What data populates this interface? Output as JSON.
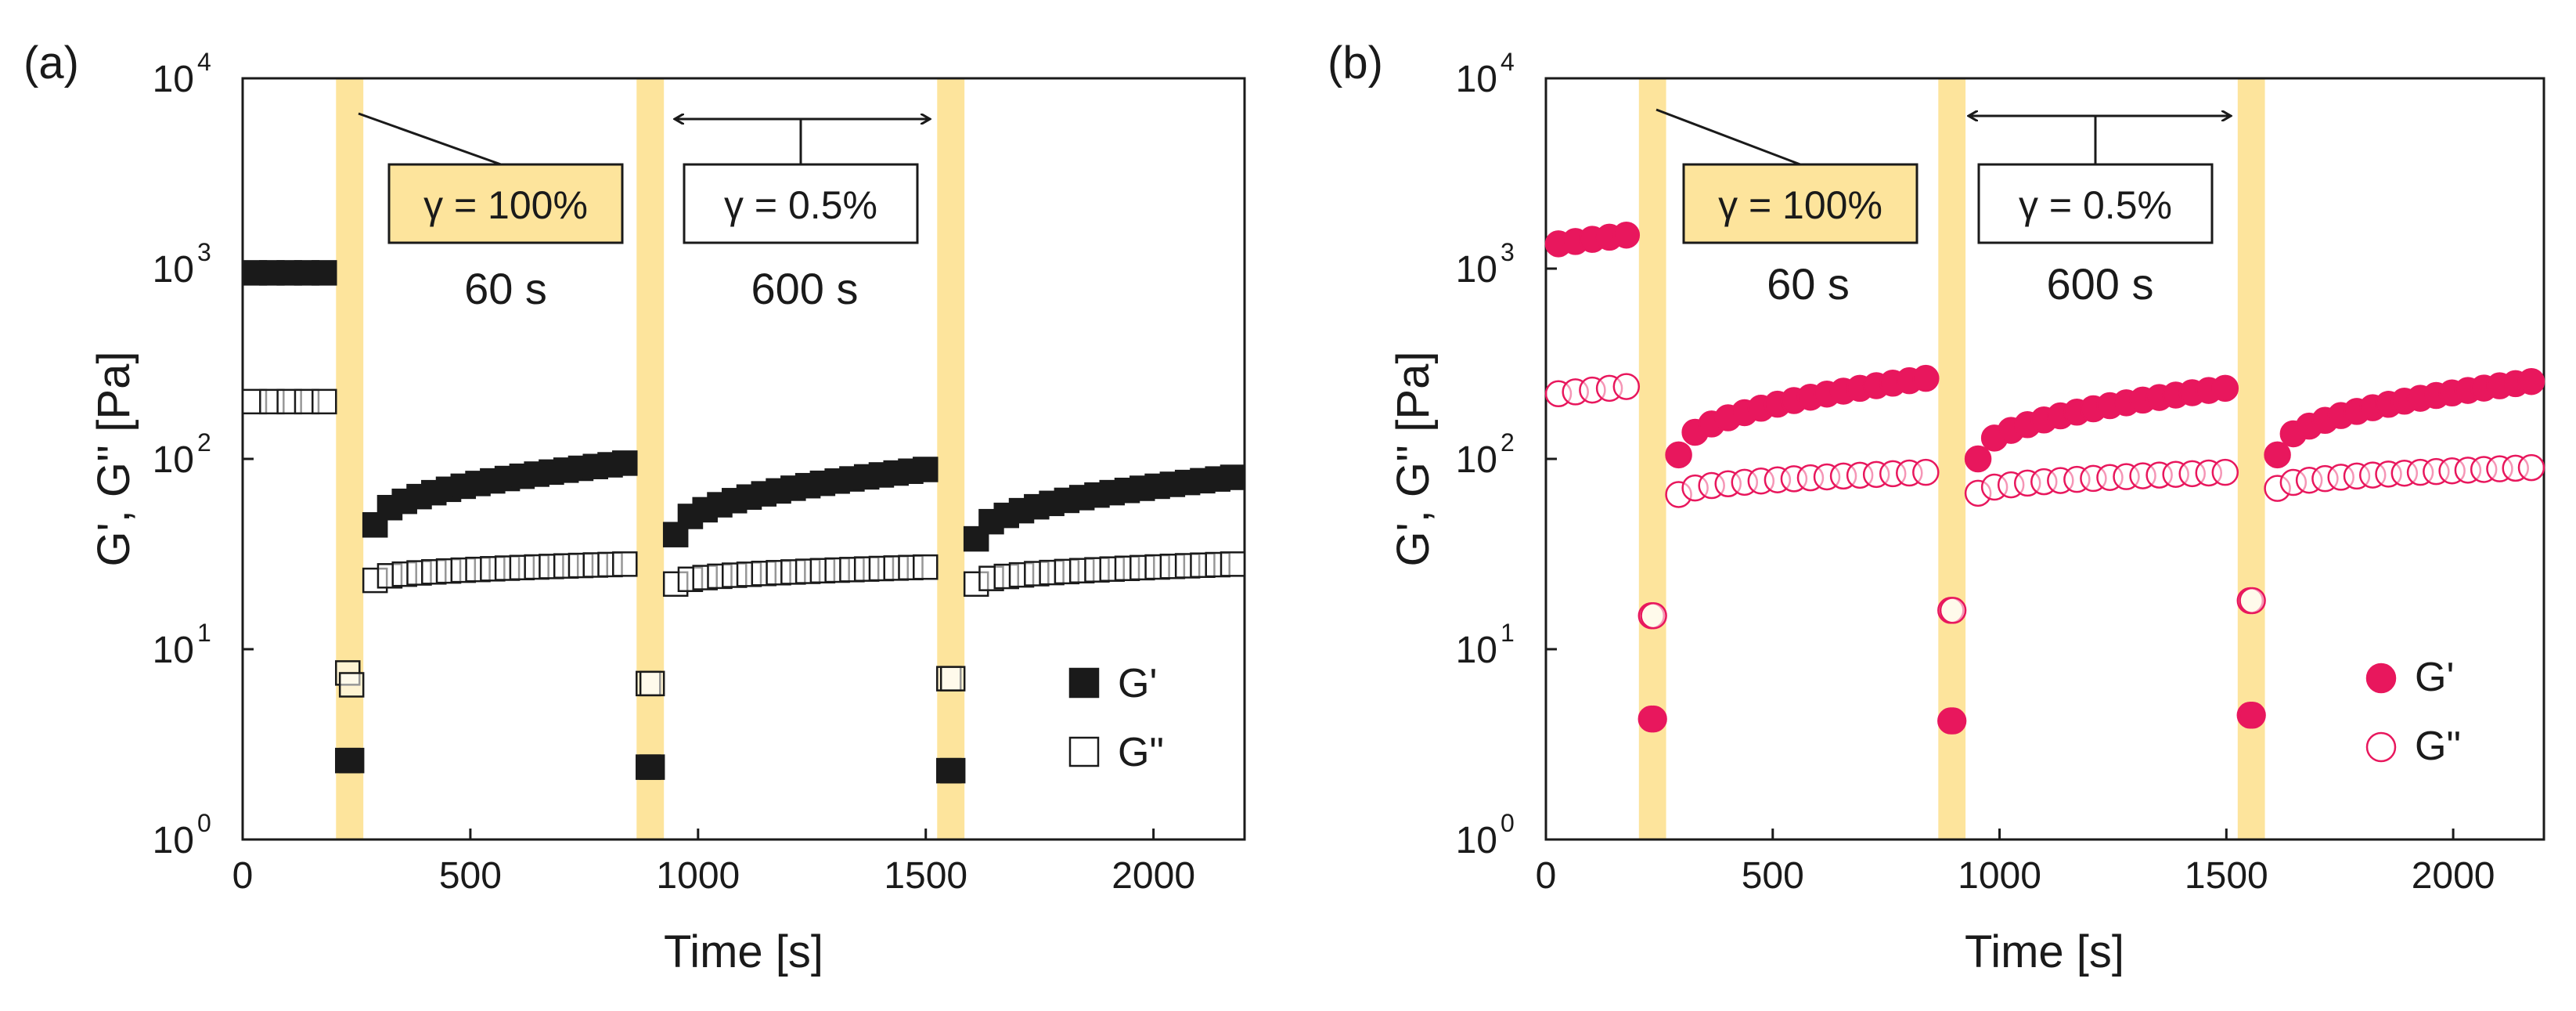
{
  "chart_data": [
    {
      "type": "scatter",
      "panel_label": "(a)",
      "xlabel": "Time [s]",
      "ylabel": "G', G'' [Pa]",
      "xlim": [
        0,
        2200
      ],
      "ylim": [
        1,
        10000
      ],
      "yscale": "log",
      "xticks": [
        "0",
        "500",
        "1000",
        "1500",
        "2000"
      ],
      "yticks": [
        {
          "base": "10",
          "exp": "0"
        },
        {
          "base": "10",
          "exp": "1"
        },
        {
          "base": "10",
          "exp": "2"
        },
        {
          "base": "10",
          "exp": "3"
        },
        {
          "base": "10",
          "exp": "4"
        }
      ],
      "highlight_color": "#fde49c",
      "highlight_intervals": [
        [
          205,
          265
        ],
        [
          865,
          925
        ],
        [
          1525,
          1585
        ]
      ],
      "annotations": {
        "high_strain": "γ = 100%",
        "high_duration": "60 s",
        "low_strain": "γ = 0.5%",
        "low_duration": "600 s"
      },
      "legend": {
        "position": "lower-right"
      },
      "marker": "square",
      "series": [
        {
          "name": "G'",
          "legend_label": "G'",
          "filled": true,
          "color": "#1a1a1a",
          "segments": [
            {
              "t0": 0,
              "t1": 205,
              "type": "const",
              "a": 950
            },
            {
              "t0": 205,
              "t1": 265,
              "type": "const",
              "a": 2.6
            },
            {
              "t0": 265,
              "t1": 865,
              "type": "recovery",
              "a": 45,
              "b": 95
            },
            {
              "t0": 865,
              "t1": 925,
              "type": "const",
              "a": 2.4
            },
            {
              "t0": 925,
              "t1": 1525,
              "type": "recovery",
              "a": 40,
              "b": 88
            },
            {
              "t0": 1525,
              "t1": 1585,
              "type": "const",
              "a": 2.3
            },
            {
              "t0": 1585,
              "t1": 2200,
              "type": "recovery",
              "a": 38,
              "b": 80
            }
          ]
        },
        {
          "name": "G''",
          "legend_label": "G\"",
          "filled": false,
          "color": "#1a1a1a",
          "segments": [
            {
              "t0": 0,
              "t1": 205,
              "type": "const",
              "a": 200
            },
            {
              "t0": 205,
              "t1": 265,
              "type": "decay",
              "a": 7.5,
              "b": 6.5
            },
            {
              "t0": 265,
              "t1": 865,
              "type": "recovery",
              "a": 23,
              "b": 28
            },
            {
              "t0": 865,
              "t1": 925,
              "type": "const",
              "a": 6.6
            },
            {
              "t0": 925,
              "t1": 1525,
              "type": "recovery",
              "a": 22,
              "b": 27
            },
            {
              "t0": 1525,
              "t1": 1585,
              "type": "const",
              "a": 7.0
            },
            {
              "t0": 1585,
              "t1": 2200,
              "type": "recovery",
              "a": 22,
              "b": 28
            }
          ]
        }
      ]
    },
    {
      "type": "scatter",
      "panel_label": "(b)",
      "xlabel": "Time [s]",
      "ylabel": "G', G'' [Pa]",
      "xlim": [
        0,
        2200
      ],
      "ylim": [
        1,
        10000
      ],
      "yscale": "log",
      "xticks": [
        "0",
        "500",
        "1000",
        "1500",
        "2000"
      ],
      "yticks": [
        {
          "base": "10",
          "exp": "0"
        },
        {
          "base": "10",
          "exp": "1"
        },
        {
          "base": "10",
          "exp": "2"
        },
        {
          "base": "10",
          "exp": "3"
        },
        {
          "base": "10",
          "exp": "4"
        }
      ],
      "highlight_color": "#fde49c",
      "highlight_intervals": [
        [
          205,
          265
        ],
        [
          865,
          925
        ],
        [
          1525,
          1585
        ]
      ],
      "annotations": {
        "high_strain": "γ = 100%",
        "high_duration": "60 s",
        "low_strain": "γ = 0.5%",
        "low_duration": "600 s"
      },
      "legend": {
        "position": "lower-right"
      },
      "marker": "circle",
      "series": [
        {
          "name": "G'",
          "legend_label": "G'",
          "filled": true,
          "color": "#e8175d",
          "segments": [
            {
              "t0": 0,
              "t1": 205,
              "type": "linear",
              "a": 1350,
              "b": 1500
            },
            {
              "t0": 205,
              "t1": 265,
              "type": "const",
              "a": 4.3
            },
            {
              "t0": 265,
              "t1": 865,
              "type": "recovery",
              "a": 105,
              "b": 265
            },
            {
              "t0": 865,
              "t1": 925,
              "type": "const",
              "a": 4.2
            },
            {
              "t0": 925,
              "t1": 1525,
              "type": "recovery",
              "a": 100,
              "b": 235
            },
            {
              "t0": 1525,
              "t1": 1585,
              "type": "const",
              "a": 4.5
            },
            {
              "t0": 1585,
              "t1": 2200,
              "type": "recovery",
              "a": 105,
              "b": 255
            }
          ]
        },
        {
          "name": "G''",
          "legend_label": "G\"",
          "filled": false,
          "color": "#e8175d",
          "segments": [
            {
              "t0": 0,
              "t1": 205,
              "type": "linear",
              "a": 220,
              "b": 240
            },
            {
              "t0": 205,
              "t1": 265,
              "type": "const",
              "a": 15
            },
            {
              "t0": 265,
              "t1": 865,
              "type": "recovery",
              "a": 65,
              "b": 85
            },
            {
              "t0": 865,
              "t1": 925,
              "type": "const",
              "a": 16
            },
            {
              "t0": 925,
              "t1": 1525,
              "type": "recovery",
              "a": 66,
              "b": 85
            },
            {
              "t0": 1525,
              "t1": 1585,
              "type": "const",
              "a": 18
            },
            {
              "t0": 1585,
              "t1": 2200,
              "type": "recovery",
              "a": 70,
              "b": 90
            }
          ]
        }
      ]
    }
  ]
}
